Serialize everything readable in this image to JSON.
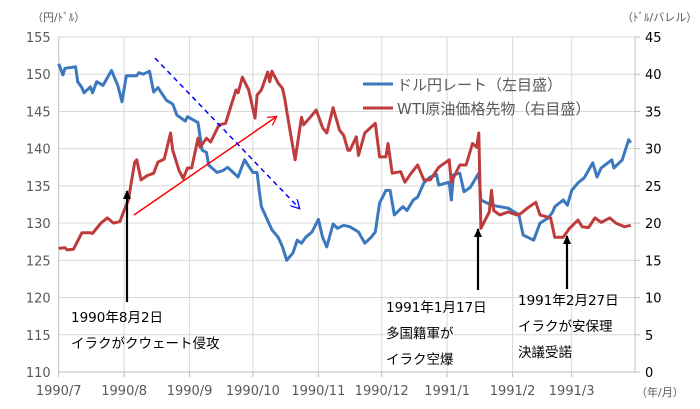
{
  "chart_data": {
    "type": "line",
    "left_axis_unit": "（円/ﾄﾞﾙ）",
    "right_axis_unit": "（ﾄﾞﾙ/バレル）",
    "x_axis_unit": "（年/月）",
    "xlim": [
      "1990-07-01",
      "1991-03-31"
    ],
    "x_ticks": [
      {
        "date": "1990-07-01",
        "label": "1990/7"
      },
      {
        "date": "1990-08-01",
        "label": "1990/8"
      },
      {
        "date": "1990-09-01",
        "label": "1990/9"
      },
      {
        "date": "1990-10-01",
        "label": "1990/10"
      },
      {
        "date": "1990-11-01",
        "label": "1990/11"
      },
      {
        "date": "1990-12-01",
        "label": "1990/12"
      },
      {
        "date": "1991-01-01",
        "label": "1991/1"
      },
      {
        "date": "1991-02-01",
        "label": "1991/2"
      },
      {
        "date": "1991-03-01",
        "label": "1991/3"
      }
    ],
    "y_left": {
      "lim": [
        110,
        155
      ],
      "ticks": [
        "110",
        "115",
        "120",
        "125",
        "130",
        "135",
        "140",
        "145",
        "150",
        "155"
      ]
    },
    "y_right": {
      "lim": [
        0,
        45
      ],
      "ticks": [
        "0",
        "5",
        "10",
        "15",
        "20",
        "25",
        "30",
        "35",
        "40",
        "45"
      ]
    },
    "grid": true,
    "legend_position": "top-right",
    "series": [
      {
        "name": "ドル円レート（左目盛）",
        "axis": "left",
        "color": "#3c78be",
        "points": [
          [
            "1990-07-01",
            151.4
          ],
          [
            "1990-07-03",
            149.9
          ],
          [
            "1990-07-04",
            150.8
          ],
          [
            "1990-07-09",
            151.0
          ],
          [
            "1990-07-10",
            149.0
          ],
          [
            "1990-07-12",
            148.2
          ],
          [
            "1990-07-13",
            147.5
          ],
          [
            "1990-07-16",
            148.3
          ],
          [
            "1990-07-17",
            147.5
          ],
          [
            "1990-07-19",
            149.0
          ],
          [
            "1990-07-22",
            148.5
          ],
          [
            "1990-07-26",
            150.5
          ],
          [
            "1990-07-29",
            148.5
          ],
          [
            "1990-07-31",
            146.3
          ],
          [
            "1990-08-02",
            149.8
          ],
          [
            "1990-08-07",
            149.8
          ],
          [
            "1990-08-08",
            150.2
          ],
          [
            "1990-08-10",
            150.0
          ],
          [
            "1990-08-13",
            150.4
          ],
          [
            "1990-08-15",
            147.6
          ],
          [
            "1990-08-17",
            148.2
          ],
          [
            "1990-08-21",
            146.5
          ],
          [
            "1990-08-24",
            146.0
          ],
          [
            "1990-08-26",
            144.5
          ],
          [
            "1990-08-30",
            143.7
          ],
          [
            "1990-08-31",
            144.3
          ],
          [
            "1990-09-05",
            143.5
          ],
          [
            "1990-09-06",
            141.6
          ],
          [
            "1990-09-07",
            139.8
          ],
          [
            "1990-09-09",
            139.5
          ],
          [
            "1990-09-10",
            137.8
          ],
          [
            "1990-09-14",
            136.8
          ],
          [
            "1990-09-17",
            137.1
          ],
          [
            "1990-09-19",
            137.5
          ],
          [
            "1990-09-24",
            136.2
          ],
          [
            "1990-09-27",
            138.5
          ],
          [
            "1990-10-01",
            136.8
          ],
          [
            "1990-10-03",
            136.8
          ],
          [
            "1990-10-04",
            134.4
          ],
          [
            "1990-10-05",
            132.2
          ],
          [
            "1990-10-10",
            129.1
          ],
          [
            "1990-10-13",
            128.1
          ],
          [
            "1990-10-15",
            126.8
          ],
          [
            "1990-10-17",
            125.0
          ],
          [
            "1990-10-20",
            126.0
          ],
          [
            "1990-10-22",
            127.7
          ],
          [
            "1990-10-24",
            127.3
          ],
          [
            "1990-10-26",
            128.1
          ],
          [
            "1990-10-29",
            128.8
          ],
          [
            "1990-11-01",
            130.5
          ],
          [
            "1990-11-03",
            128.1
          ],
          [
            "1990-11-05",
            126.8
          ],
          [
            "1990-11-08",
            129.9
          ],
          [
            "1990-11-10",
            129.3
          ],
          [
            "1990-11-13",
            129.7
          ],
          [
            "1990-11-16",
            129.5
          ],
          [
            "1990-11-20",
            128.8
          ],
          [
            "1990-11-23",
            127.3
          ],
          [
            "1990-11-26",
            128.1
          ],
          [
            "1990-11-28",
            128.8
          ],
          [
            "1990-11-30",
            132.7
          ],
          [
            "1990-12-03",
            134.4
          ],
          [
            "1990-12-05",
            134.4
          ],
          [
            "1990-12-07",
            131.1
          ],
          [
            "1990-12-11",
            132.2
          ],
          [
            "1990-12-13",
            131.7
          ],
          [
            "1990-12-16",
            133.1
          ],
          [
            "1990-12-18",
            133.5
          ],
          [
            "1990-12-21",
            135.4
          ],
          [
            "1990-12-24",
            136.2
          ],
          [
            "1990-12-27",
            136.5
          ],
          [
            "1990-12-28",
            135.1
          ],
          [
            "1991-01-02",
            135.5
          ],
          [
            "1991-01-03",
            133.1
          ],
          [
            "1991-01-04",
            136.5
          ],
          [
            "1991-01-07",
            136.7
          ],
          [
            "1991-01-09",
            134.2
          ],
          [
            "1991-01-12",
            134.8
          ],
          [
            "1991-01-16",
            136.7
          ],
          [
            "1991-01-17",
            133.1
          ],
          [
            "1991-01-22",
            132.4
          ],
          [
            "1991-01-30",
            132.0
          ],
          [
            "1991-02-04",
            131.1
          ],
          [
            "1991-02-06",
            128.4
          ],
          [
            "1991-02-11",
            127.7
          ],
          [
            "1991-02-14",
            130.0
          ],
          [
            "1991-02-18",
            130.7
          ],
          [
            "1991-02-20",
            131.5
          ],
          [
            "1991-02-21",
            132.2
          ],
          [
            "1991-02-25",
            133.1
          ],
          [
            "1991-02-27",
            132.4
          ],
          [
            "1991-03-01",
            134.4
          ],
          [
            "1991-03-04",
            135.4
          ],
          [
            "1991-03-07",
            136.1
          ],
          [
            "1991-03-11",
            138.1
          ],
          [
            "1991-03-13",
            136.2
          ],
          [
            "1991-03-15",
            137.4
          ],
          [
            "1991-03-20",
            138.5
          ],
          [
            "1991-03-21",
            137.4
          ],
          [
            "1991-03-25",
            138.5
          ],
          [
            "1991-03-26",
            139.4
          ],
          [
            "1991-03-28",
            141.2
          ],
          [
            "1991-03-29",
            140.8
          ]
        ]
      },
      {
        "name": "WTI原油価格先物（右目盛）",
        "axis": "right",
        "color": "#be3c3c",
        "points": [
          [
            "1990-07-01",
            16.6
          ],
          [
            "1990-07-04",
            16.7
          ],
          [
            "1990-07-05",
            16.4
          ],
          [
            "1990-07-08",
            16.5
          ],
          [
            "1990-07-12",
            18.7
          ],
          [
            "1990-07-16",
            18.7
          ],
          [
            "1990-07-17",
            18.6
          ],
          [
            "1990-07-21",
            20.0
          ],
          [
            "1990-07-24",
            20.7
          ],
          [
            "1990-07-27",
            20.0
          ],
          [
            "1990-07-30",
            20.2
          ],
          [
            "1990-08-01",
            21.7
          ],
          [
            "1990-08-03",
            23.1
          ],
          [
            "1990-08-06",
            28.2
          ],
          [
            "1990-08-07",
            28.5
          ],
          [
            "1990-08-09",
            25.8
          ],
          [
            "1990-08-12",
            26.4
          ],
          [
            "1990-08-15",
            26.7
          ],
          [
            "1990-08-17",
            28.2
          ],
          [
            "1990-08-20",
            28.6
          ],
          [
            "1990-08-23",
            32.1
          ],
          [
            "1990-08-24",
            29.8
          ],
          [
            "1990-08-27",
            27.1
          ],
          [
            "1990-08-29",
            26.0
          ],
          [
            "1990-08-31",
            27.4
          ],
          [
            "1990-09-02",
            27.4
          ],
          [
            "1990-09-05",
            31.4
          ],
          [
            "1990-09-06",
            30.2
          ],
          [
            "1990-09-09",
            31.4
          ],
          [
            "1990-09-11",
            30.9
          ],
          [
            "1990-09-15",
            33.2
          ],
          [
            "1990-09-18",
            33.4
          ],
          [
            "1990-09-20",
            35.2
          ],
          [
            "1990-09-23",
            37.9
          ],
          [
            "1990-09-24",
            37.5
          ],
          [
            "1990-09-26",
            39.6
          ],
          [
            "1990-09-29",
            37.9
          ],
          [
            "1990-10-02",
            34.1
          ],
          [
            "1990-10-03",
            37.2
          ],
          [
            "1990-10-05",
            37.9
          ],
          [
            "1990-10-08",
            40.3
          ],
          [
            "1990-10-09",
            39.0
          ],
          [
            "1990-10-10",
            40.4
          ],
          [
            "1990-10-13",
            38.8
          ],
          [
            "1990-10-15",
            38.1
          ],
          [
            "1990-10-16",
            36.8
          ],
          [
            "1990-10-18",
            33.4
          ],
          [
            "1990-10-21",
            28.5
          ],
          [
            "1990-10-24",
            34.2
          ],
          [
            "1990-10-25",
            33.2
          ],
          [
            "1990-10-29",
            34.5
          ],
          [
            "1990-10-31",
            35.2
          ],
          [
            "1990-11-03",
            32.8
          ],
          [
            "1990-11-05",
            32.1
          ],
          [
            "1990-11-08",
            35.5
          ],
          [
            "1990-11-11",
            32.5
          ],
          [
            "1990-11-13",
            31.8
          ],
          [
            "1990-11-15",
            29.8
          ],
          [
            "1990-11-16",
            29.8
          ],
          [
            "1990-11-19",
            31.6
          ],
          [
            "1990-11-20",
            29.1
          ],
          [
            "1990-11-23",
            32.1
          ],
          [
            "1990-11-26",
            32.9
          ],
          [
            "1990-11-28",
            33.4
          ],
          [
            "1990-11-30",
            28.9
          ],
          [
            "1990-12-03",
            28.9
          ],
          [
            "1990-12-04",
            30.7
          ],
          [
            "1990-12-06",
            26.7
          ],
          [
            "1990-12-10",
            26.9
          ],
          [
            "1990-12-12",
            25.5
          ],
          [
            "1990-12-15",
            26.7
          ],
          [
            "1990-12-18",
            27.8
          ],
          [
            "1990-12-21",
            25.8
          ],
          [
            "1990-12-24",
            25.8
          ],
          [
            "1990-12-28",
            27.5
          ],
          [
            "1991-01-02",
            28.5
          ],
          [
            "1991-01-03",
            25.5
          ],
          [
            "1991-01-07",
            27.8
          ],
          [
            "1991-01-10",
            27.8
          ],
          [
            "1991-01-13",
            30.7
          ],
          [
            "1991-01-15",
            30.2
          ],
          [
            "1991-01-16",
            32.1
          ],
          [
            "1991-01-17",
            19.3
          ],
          [
            "1991-01-21",
            21.5
          ],
          [
            "1991-01-22",
            24.4
          ],
          [
            "1991-01-23",
            21.7
          ],
          [
            "1991-01-26",
            21.1
          ],
          [
            "1991-01-30",
            21.5
          ],
          [
            "1991-02-03",
            21.1
          ],
          [
            "1991-02-05",
            21.3
          ],
          [
            "1991-02-08",
            22.0
          ],
          [
            "1991-02-12",
            22.8
          ],
          [
            "1991-02-14",
            21.1
          ],
          [
            "1991-02-19",
            20.7
          ],
          [
            "1991-02-21",
            18.1
          ],
          [
            "1991-02-25",
            18.1
          ],
          [
            "1991-02-28",
            19.3
          ],
          [
            "1991-03-04",
            20.4
          ],
          [
            "1991-03-06",
            19.5
          ],
          [
            "1991-03-09",
            19.4
          ],
          [
            "1991-03-12",
            20.7
          ],
          [
            "1991-03-15",
            20.1
          ],
          [
            "1991-03-19",
            20.7
          ],
          [
            "1991-03-22",
            20.0
          ],
          [
            "1991-03-26",
            19.5
          ],
          [
            "1991-03-29",
            19.7
          ]
        ]
      }
    ],
    "annotations": [
      {
        "date": "1990-08-02",
        "lines": [
          "1990年8月2日",
          "イラクがクウェート侵攻"
        ]
      },
      {
        "date": "1991-01-17",
        "lines": [
          "1991年1月17日",
          "多国籍軍が",
          "イラク空爆"
        ]
      },
      {
        "date": "1991-02-27",
        "lines": [
          "1991年2月27日",
          "イラクが安保理",
          "決議受諾"
        ]
      }
    ],
    "trend_arrows": [
      {
        "meaning": "oil up",
        "color": "#ff0000",
        "style": "solid"
      },
      {
        "meaning": "yen rate down",
        "color": "#0000ff",
        "style": "dashed"
      }
    ]
  }
}
